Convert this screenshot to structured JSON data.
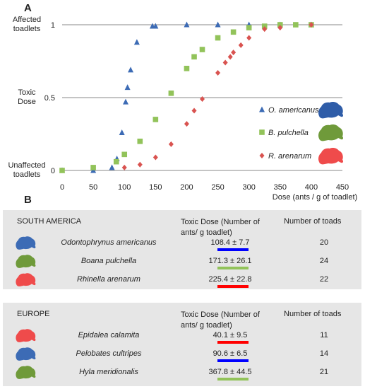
{
  "panel_a_label": "A",
  "panel_b_label": "B",
  "colors": {
    "americanus": "#3c6bb5",
    "pulchella": "#92c35a",
    "arenarum": "#d95350",
    "bar_blue": "#0000ff",
    "bar_green": "#92c35a",
    "bar_red": "#ff0000"
  },
  "chart_data": {
    "type": "scatter",
    "xlabel": "Dose (ants / g of toadlet)",
    "xlim": [
      0,
      450
    ],
    "ylim": [
      0,
      1
    ],
    "x_ticks": [
      "0",
      "50",
      "100",
      "150",
      "200",
      "250",
      "300",
      "350",
      "400",
      "450"
    ],
    "y_ticks": [
      "0",
      "0.5",
      "1"
    ],
    "y_annotations": [
      "Unaffected toadlets",
      "Toxic Dose",
      "Affected toadlets"
    ],
    "legend_placement": "right",
    "grid": "horizontal",
    "series": [
      {
        "name": "O. americanus",
        "marker": "triangle",
        "points": [
          [
            0,
            0
          ],
          [
            50,
            0
          ],
          [
            80,
            0.02
          ],
          [
            88,
            0.08
          ],
          [
            96,
            0.26
          ],
          [
            102,
            0.47
          ],
          [
            105,
            0.57
          ],
          [
            110,
            0.69
          ],
          [
            120,
            0.88
          ],
          [
            145,
            0.99
          ],
          [
            150,
            0.99
          ],
          [
            200,
            1
          ],
          [
            250,
            1
          ],
          [
            300,
            1
          ],
          [
            350,
            1
          ],
          [
            400,
            1
          ]
        ]
      },
      {
        "name": "B. pulchella",
        "marker": "square",
        "points": [
          [
            0,
            0
          ],
          [
            50,
            0.02
          ],
          [
            87,
            0.06
          ],
          [
            100,
            0.11
          ],
          [
            125,
            0.2
          ],
          [
            150,
            0.35
          ],
          [
            175,
            0.53
          ],
          [
            200,
            0.7
          ],
          [
            212,
            0.78
          ],
          [
            225,
            0.83
          ],
          [
            250,
            0.91
          ],
          [
            275,
            0.95
          ],
          [
            300,
            0.98
          ],
          [
            325,
            0.99
          ],
          [
            350,
            1
          ],
          [
            375,
            1
          ],
          [
            400,
            1
          ]
        ]
      },
      {
        "name": "R. arenarum",
        "marker": "diamond",
        "points": [
          [
            100,
            0.02
          ],
          [
            125,
            0.04
          ],
          [
            150,
            0.09
          ],
          [
            175,
            0.18
          ],
          [
            200,
            0.32
          ],
          [
            212,
            0.41
          ],
          [
            225,
            0.49
          ],
          [
            250,
            0.67
          ],
          [
            262,
            0.74
          ],
          [
            270,
            0.78
          ],
          [
            275,
            0.81
          ],
          [
            287,
            0.86
          ],
          [
            300,
            0.91
          ],
          [
            325,
            0.97
          ],
          [
            350,
            0.98
          ],
          [
            400,
            1
          ]
        ]
      }
    ]
  },
  "south_america": {
    "region": "SOUTH AMERICA",
    "dose_header": "Toxic Dose  (Number of ants/ g toadlet)",
    "count_header": "Number of toads",
    "rows": [
      {
        "species": "Odontophrynus americanus",
        "dose": "108.4 ± 7.7",
        "count": "20",
        "color": "#0000ff",
        "toad": "#3c6bb5"
      },
      {
        "species": "Boana pulchella",
        "dose": "171.3 ± 26.1",
        "count": "24",
        "color": "#92c35a",
        "toad": "#6f9a3a"
      },
      {
        "species": "Rhinella arenarum",
        "dose": "225.4 ± 22.8",
        "count": "22",
        "color": "#ff0000",
        "toad": "#ef4b4b"
      }
    ]
  },
  "europe": {
    "region": "EUROPE",
    "dose_header": "Toxic Dose (Number of ants/ g toadlet)",
    "count_header": "Number of toads",
    "rows": [
      {
        "species": "Epidalea calamita",
        "dose": "40.1 ± 9.5",
        "count": "11",
        "color": "#ff0000",
        "toad": "#ef4b4b"
      },
      {
        "species": "Pelobates cultripes",
        "dose": "90.6 ± 6.5",
        "count": "14",
        "color": "#0000ff",
        "toad": "#3c6bb5"
      },
      {
        "species": "Hyla meridionalis",
        "dose": "367.8 ± 44.5",
        "count": "21",
        "color": "#92c35a",
        "toad": "#6f9a3a"
      }
    ]
  }
}
